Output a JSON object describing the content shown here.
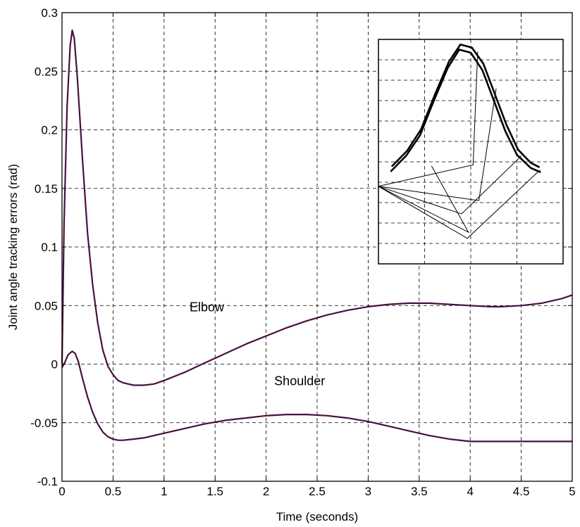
{
  "colors": {
    "series": "#4a1040",
    "axes": "#000000",
    "grid": "#000000",
    "inset_curve": "#000000"
  },
  "chart_data": [
    {
      "type": "line",
      "title": "",
      "xlabel": "Time (seconds)",
      "ylabel": "Joint angle tracking errors (rad)",
      "xlim": [
        0,
        5
      ],
      "ylim": [
        -0.1,
        0.3
      ],
      "grid": true,
      "legend": "none",
      "xticks": [
        0,
        0.5,
        1,
        1.5,
        2,
        2.5,
        3,
        3.5,
        4,
        4.5,
        5
      ],
      "xtick_labels": [
        "0",
        "0.5",
        "1",
        "1.5",
        "2",
        "2.5",
        "3",
        "3.5",
        "4",
        "4.5",
        "5"
      ],
      "yticks": [
        -0.1,
        -0.05,
        0,
        0.05,
        0.1,
        0.15,
        0.2,
        0.25,
        0.3
      ],
      "ytick_labels": [
        "-0.1",
        "-0.05",
        "0",
        "0.05",
        "0.1",
        "0.15",
        "0.2",
        "0.25",
        "0.3"
      ],
      "annotations": [
        {
          "text": "Elbow",
          "x": 1.25,
          "y": 0.045
        },
        {
          "text": "Shoulder",
          "x": 2.08,
          "y": -0.018
        }
      ],
      "series": [
        {
          "name": "Elbow",
          "x": [
            0,
            0.02,
            0.05,
            0.08,
            0.1,
            0.12,
            0.15,
            0.2,
            0.25,
            0.3,
            0.35,
            0.4,
            0.45,
            0.5,
            0.55,
            0.6,
            0.7,
            0.8,
            0.9,
            1.0,
            1.2,
            1.4,
            1.6,
            1.8,
            2.0,
            2.2,
            2.4,
            2.6,
            2.8,
            3.0,
            3.2,
            3.4,
            3.6,
            3.8,
            4.0,
            4.2,
            4.3,
            4.5,
            4.7,
            4.9,
            5.0
          ],
          "y": [
            0,
            0.12,
            0.22,
            0.272,
            0.285,
            0.278,
            0.245,
            0.175,
            0.112,
            0.068,
            0.035,
            0.012,
            -0.002,
            -0.009,
            -0.014,
            -0.016,
            -0.018,
            -0.018,
            -0.017,
            -0.014,
            -0.007,
            0.001,
            0.009,
            0.017,
            0.024,
            0.031,
            0.037,
            0.042,
            0.046,
            0.049,
            0.051,
            0.052,
            0.052,
            0.051,
            0.05,
            0.049,
            0.049,
            0.05,
            0.052,
            0.056,
            0.059
          ]
        },
        {
          "name": "Shoulder",
          "x": [
            0,
            0.03,
            0.06,
            0.1,
            0.13,
            0.16,
            0.2,
            0.25,
            0.3,
            0.35,
            0.4,
            0.45,
            0.5,
            0.55,
            0.6,
            0.7,
            0.8,
            0.9,
            1.0,
            1.2,
            1.4,
            1.6,
            1.8,
            2.0,
            2.2,
            2.4,
            2.6,
            2.8,
            3.0,
            3.2,
            3.4,
            3.6,
            3.8,
            4.0,
            4.2,
            4.4,
            4.6,
            4.8,
            5.0
          ],
          "y": [
            -0.003,
            0.002,
            0.008,
            0.011,
            0.009,
            0.002,
            -0.012,
            -0.028,
            -0.041,
            -0.051,
            -0.058,
            -0.062,
            -0.064,
            -0.065,
            -0.065,
            -0.064,
            -0.063,
            -0.061,
            -0.059,
            -0.055,
            -0.051,
            -0.048,
            -0.046,
            -0.044,
            -0.043,
            -0.043,
            -0.044,
            -0.046,
            -0.049,
            -0.053,
            -0.057,
            -0.061,
            -0.064,
            -0.066,
            -0.066,
            -0.066,
            -0.066,
            -0.066,
            -0.066
          ]
        }
      ]
    },
    {
      "type": "line",
      "title": "",
      "xlabel": "",
      "ylabel": "",
      "xlim": [
        0,
        8
      ],
      "ylim": [
        0,
        11
      ],
      "grid": true,
      "legend": "none",
      "series": [
        {
          "x": [
            0.55,
            1.2,
            1.8,
            2.4,
            3.0,
            3.5,
            4.0,
            4.5,
            5.0,
            5.5,
            6.0,
            6.6,
            7.0
          ],
          "y": [
            4.55,
            5.3,
            6.3,
            8.0,
            9.6,
            10.5,
            10.35,
            9.5,
            8.0,
            6.5,
            5.35,
            4.7,
            4.5
          ]
        },
        {
          "x": [
            0.6,
            1.25,
            1.85,
            2.45,
            3.05,
            3.55,
            4.05,
            4.55,
            5.05,
            5.55,
            6.05,
            6.6,
            6.95
          ],
          "y": [
            4.8,
            5.55,
            6.6,
            8.3,
            9.9,
            10.75,
            10.6,
            9.8,
            8.3,
            6.8,
            5.6,
            4.95,
            4.75
          ]
        }
      ],
      "arm_links": [
        {
          "base": [
            0,
            3.8
          ],
          "elbow": [
            4.1,
            4.85
          ],
          "tip": [
            4.3,
            10.4
          ]
        },
        {
          "base": [
            0,
            3.8
          ],
          "elbow": [
            4.35,
            3.1
          ],
          "tip": [
            5.1,
            8.6
          ]
        },
        {
          "base": [
            0,
            3.8
          ],
          "elbow": [
            3.6,
            2.45
          ],
          "tip": [
            6.2,
            5.3
          ]
        },
        {
          "base": [
            0,
            3.8
          ],
          "elbow": [
            3.85,
            1.25
          ],
          "tip": [
            7.0,
            4.6
          ]
        },
        {
          "base": [
            0,
            3.8
          ],
          "elbow": [
            3.9,
            1.55
          ],
          "tip": [
            2.3,
            4.8
          ]
        }
      ]
    }
  ]
}
